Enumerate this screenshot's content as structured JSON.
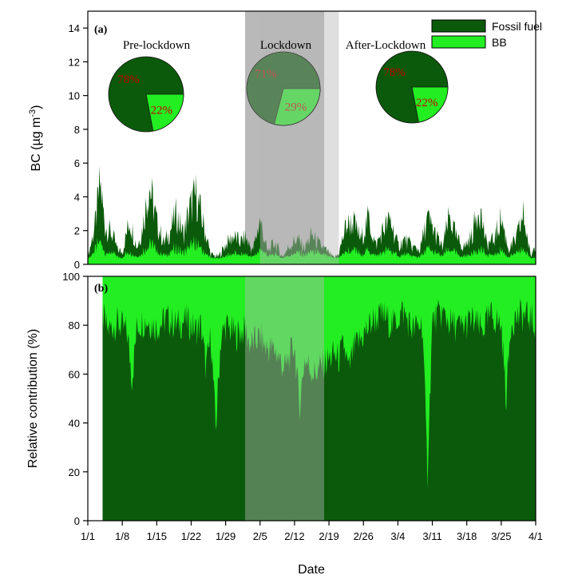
{
  "colors": {
    "fossil": "#0b5a0b",
    "bb": "#22ee22",
    "lockdown_shade": "#b9b9b9",
    "pct_text": "#cc0000"
  },
  "chart_data": [
    {
      "type": "area",
      "panel_label": "(a)",
      "ylabel": "BC (µg m",
      "ylabel_sup": "-3",
      "ylabel_close": ")",
      "ylim": [
        0,
        15
      ],
      "yticks": [
        0,
        2,
        4,
        6,
        8,
        10,
        12,
        14
      ],
      "xlim_days": [
        0,
        91
      ],
      "lockdown_days": [
        35,
        51
      ],
      "legend": {
        "placement": "top-right",
        "entries": [
          "Fossil fuel",
          "BB"
        ]
      },
      "envelope_days": [
        0,
        1.5,
        2.5,
        3.5,
        5,
        6,
        7,
        8.5,
        10,
        11,
        12.5,
        14,
        15.5,
        16.5,
        18,
        19.5,
        20.5,
        22,
        23.5,
        25,
        26.5,
        28,
        29.5,
        31,
        32,
        33.5,
        35,
        36.5,
        38,
        39.5,
        41,
        42.5,
        44,
        45.5,
        47,
        48.5,
        50,
        51,
        52.5,
        54,
        55.5,
        57,
        58.5,
        60,
        61.5,
        63,
        64.5,
        66,
        67.5,
        69,
        70.5,
        72,
        73.5,
        75,
        76.5,
        78,
        79.5,
        81,
        82.5,
        84,
        85.5,
        87,
        88.5,
        90,
        91
      ],
      "total_bc": [
        0.6,
        3.2,
        6.6,
        3.1,
        2.4,
        1.2,
        1.0,
        3.6,
        1.4,
        2.8,
        6.5,
        3.4,
        1.7,
        2.5,
        4.1,
        2.4,
        4.3,
        5.7,
        3.2,
        0.8,
        0.6,
        1.6,
        2.3,
        1.8,
        2.2,
        1.1,
        3.6,
        1.0,
        1.8,
        0.6,
        1.5,
        2.1,
        1.3,
        2.4,
        1.6,
        1.1,
        0.5,
        0.9,
        3.2,
        3.4,
        2.0,
        3.8,
        1.5,
        2.8,
        3.6,
        1.5,
        2.0,
        1.4,
        1.2,
        3.7,
        2.6,
        1.3,
        3.9,
        2.0,
        1.4,
        2.3,
        4.9,
        1.6,
        2.0,
        3.8,
        1.2,
        2.0,
        4.0,
        0.6,
        1.8
      ],
      "bb_fraction_by_period": {
        "pre_lockdown": 0.22,
        "lockdown": 0.29,
        "after_lockdown": 0.22
      },
      "pies": [
        {
          "title": "Pre-lockdown",
          "fossil_pct": 78,
          "bb_pct": 22,
          "fossil_label": "78%",
          "bb_label": "22%"
        },
        {
          "title": "Lockdown",
          "fossil_pct": 71,
          "bb_pct": 29,
          "fossil_label": "71%",
          "bb_label": "29%"
        },
        {
          "title": "After-Lockdown",
          "fossil_pct": 78,
          "bb_pct": 22,
          "fossil_label": "78%",
          "bb_label": "22%"
        }
      ]
    },
    {
      "type": "area",
      "panel_label": "(b)",
      "ylabel": "Relative contribution (%)",
      "xlabel": "Date",
      "ylim": [
        0,
        100
      ],
      "yticks": [
        0,
        20,
        40,
        60,
        80,
        100
      ],
      "xtick_days": [
        0,
        7,
        14,
        21,
        28,
        35,
        42,
        49,
        56,
        63,
        70,
        77,
        84,
        91
      ],
      "xtick_labels": [
        "1/1",
        "1/8",
        "1/15",
        "1/22",
        "1/29",
        "2/5",
        "2/12",
        "2/19",
        "2/26",
        "3/4",
        "3/11",
        "3/18",
        "3/25",
        "4/1"
      ],
      "data_start_day": 3,
      "fossil_pct_days": [
        3,
        4,
        6,
        8,
        9,
        10,
        12,
        14,
        16,
        18,
        20,
        22,
        23,
        24,
        25,
        26,
        27,
        28,
        30,
        32,
        33,
        35,
        36,
        38,
        40,
        42,
        43,
        44,
        46,
        48,
        50,
        51,
        52,
        53,
        54,
        56,
        58,
        60,
        62,
        64,
        66,
        68,
        69,
        70,
        72,
        74,
        76,
        78,
        80,
        82,
        84,
        85,
        86,
        88,
        90,
        91
      ],
      "fossil_pct": [
        84,
        78,
        81,
        77,
        58,
        80,
        82,
        79,
        83,
        80,
        82,
        78,
        80,
        62,
        76,
        37,
        74,
        80,
        76,
        78,
        72,
        75,
        71,
        70,
        62,
        72,
        46,
        66,
        60,
        64,
        68,
        66,
        72,
        61,
        70,
        76,
        82,
        84,
        80,
        86,
        78,
        81,
        19,
        82,
        85,
        80,
        79,
        82,
        78,
        84,
        80,
        50,
        82,
        84,
        83,
        80
      ]
    }
  ]
}
